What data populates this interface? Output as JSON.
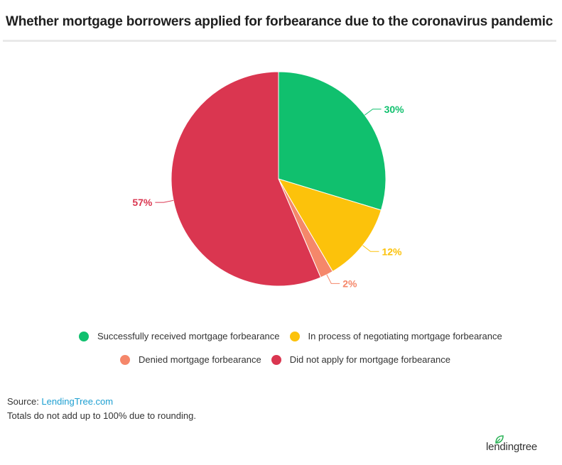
{
  "header": {
    "title": "Whether mortgage borrowers applied for forbearance due to the coronavirus pandemic"
  },
  "chart_data": {
    "type": "pie",
    "title": "Whether mortgage borrowers applied for forbearance due to the coronavirus pandemic",
    "slices": [
      {
        "name": "Successfully received mortgage forbearance",
        "value": 30,
        "label": "30%",
        "color": "#10c06e"
      },
      {
        "name": "In process of negotiating mortgage forbearance",
        "value": 12,
        "label": "12%",
        "color": "#fcc20b"
      },
      {
        "name": "Denied mortgage forbearance",
        "value": 2,
        "label": "2%",
        "color": "#f5876a"
      },
      {
        "name": "Did not apply for mortgage forbearance",
        "value": 57,
        "label": "57%",
        "color": "#da3650"
      }
    ],
    "legend_position": "bottom"
  },
  "footer": {
    "source_prefix": "Source: ",
    "source_link": "LendingTree.com",
    "note": "Totals do not add up to 100% due to rounding."
  },
  "branding": {
    "logo_text": "lendingtree",
    "logo_icon": "leaf-icon"
  }
}
